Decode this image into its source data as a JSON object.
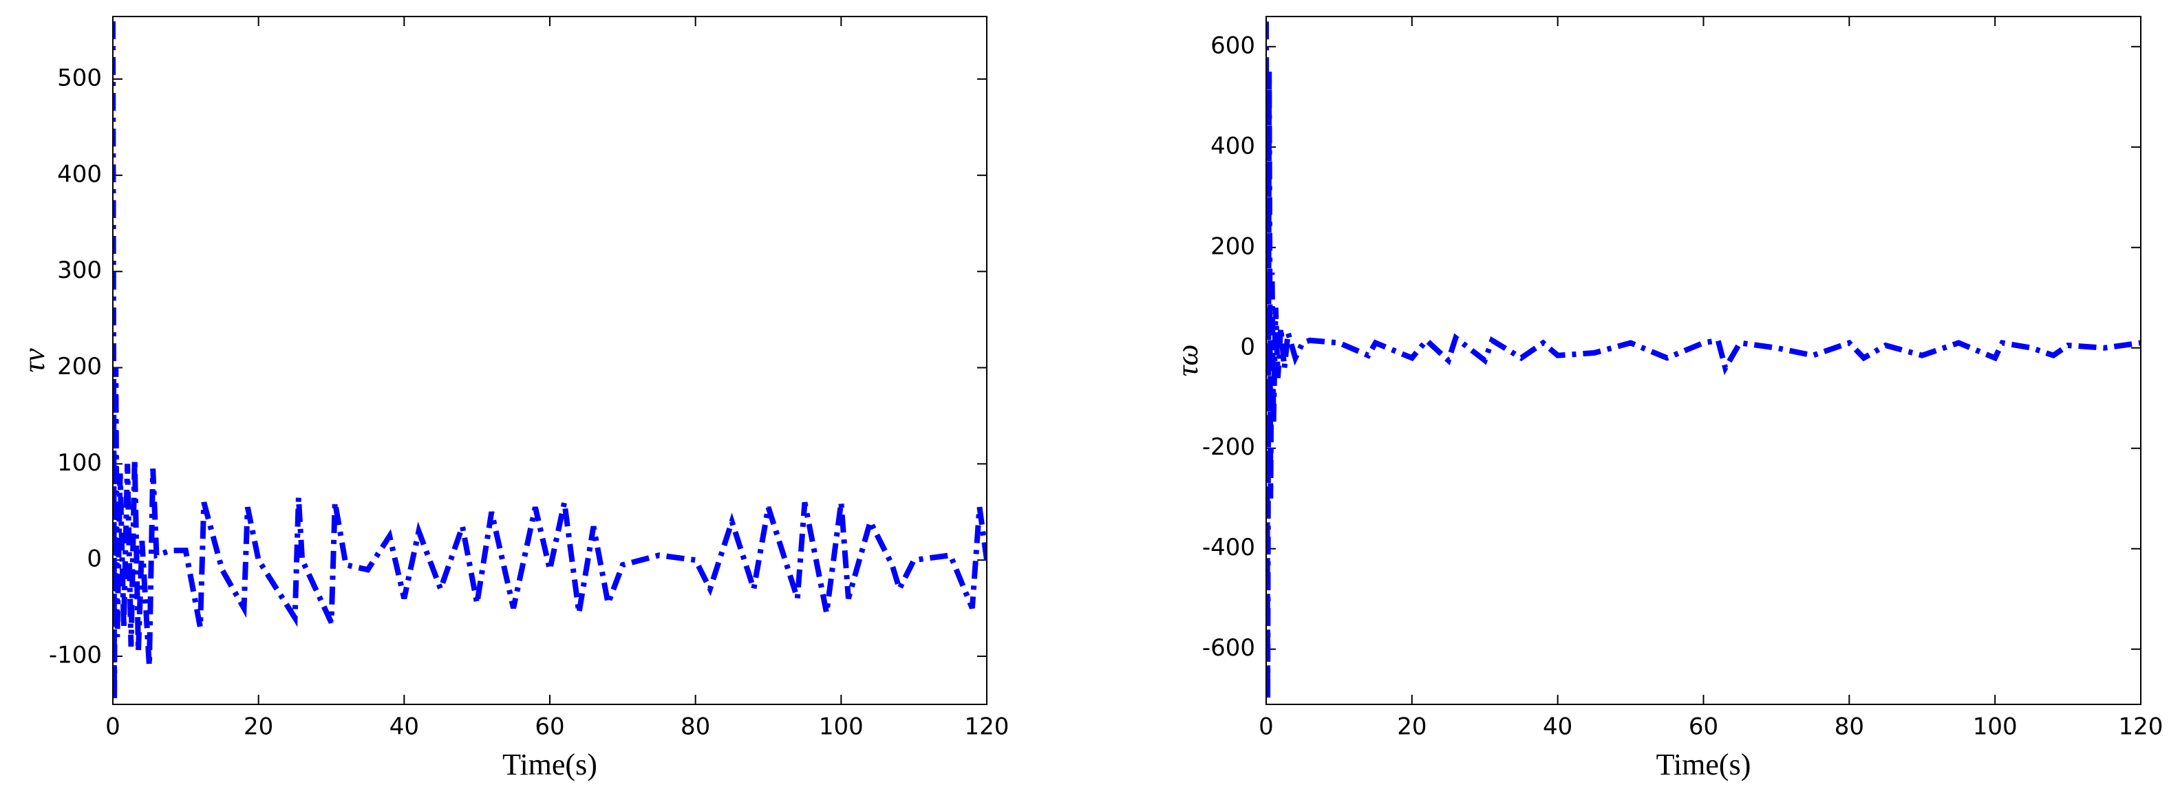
{
  "chart_data": [
    {
      "type": "line",
      "xlabel": "Time(s)",
      "ylabel": "τv",
      "color": "#0000ff",
      "xlim": [
        0,
        120
      ],
      "ylim": [
        -150,
        565
      ],
      "xticks": [
        0,
        20,
        40,
        60,
        80,
        100,
        120
      ],
      "yticks": [
        -100,
        0,
        100,
        200,
        300,
        400,
        500
      ],
      "x": [
        0,
        0.2,
        0.4,
        0.6,
        1,
        1.5,
        2,
        2.5,
        3,
        3.5,
        4,
        5,
        5.5,
        6,
        8,
        10,
        12,
        12.5,
        15,
        18,
        18.5,
        20,
        25,
        25.5,
        26,
        30,
        30.5,
        32,
        35,
        38,
        40,
        42,
        45,
        48,
        50,
        52,
        55,
        58,
        60,
        62,
        64,
        66,
        68,
        70,
        75,
        80,
        82,
        85,
        88,
        90,
        94,
        95,
        98,
        100,
        101,
        104,
        107,
        108,
        110,
        115,
        118,
        119,
        120
      ],
      "values": [
        560,
        -145,
        200,
        -80,
        90,
        -70,
        100,
        -90,
        105,
        -95,
        20,
        -110,
        95,
        5,
        10,
        10,
        -70,
        60,
        -10,
        -50,
        55,
        0,
        -60,
        65,
        0,
        -65,
        60,
        -5,
        -10,
        25,
        -40,
        30,
        -30,
        35,
        -45,
        50,
        -50,
        55,
        -10,
        60,
        -55,
        35,
        -45,
        -5,
        5,
        0,
        -30,
        40,
        -30,
        55,
        -40,
        60,
        -55,
        60,
        -40,
        40,
        -5,
        -30,
        0,
        5,
        -50,
        55,
        0
      ]
    },
    {
      "type": "line",
      "xlabel": "Time(s)",
      "ylabel": "τω",
      "color": "#0000ff",
      "xlim": [
        0,
        120
      ],
      "ylim": [
        -710,
        660
      ],
      "xticks": [
        0,
        20,
        40,
        60,
        80,
        100,
        120
      ],
      "yticks": [
        -600,
        -400,
        -200,
        0,
        200,
        400,
        600
      ],
      "x": [
        0,
        0.2,
        0.4,
        0.6,
        0.8,
        1,
        1.3,
        1.6,
        2,
        2.5,
        3,
        4,
        5,
        6,
        10,
        14,
        15,
        20,
        22,
        25,
        26,
        30,
        31,
        35,
        38,
        40,
        45,
        50,
        55,
        60,
        62,
        63,
        65,
        70,
        75,
        80,
        82,
        85,
        90,
        95,
        100,
        101,
        105,
        108,
        110,
        115,
        120
      ],
      "values": [
        650,
        -700,
        550,
        -300,
        150,
        -150,
        80,
        -60,
        40,
        -40,
        30,
        -20,
        10,
        15,
        10,
        -15,
        10,
        -20,
        15,
        -25,
        20,
        -25,
        15,
        -20,
        10,
        -15,
        -10,
        10,
        -20,
        10,
        15,
        -40,
        10,
        0,
        -15,
        10,
        -20,
        5,
        -15,
        10,
        -20,
        10,
        0,
        -15,
        5,
        0,
        10
      ]
    }
  ]
}
